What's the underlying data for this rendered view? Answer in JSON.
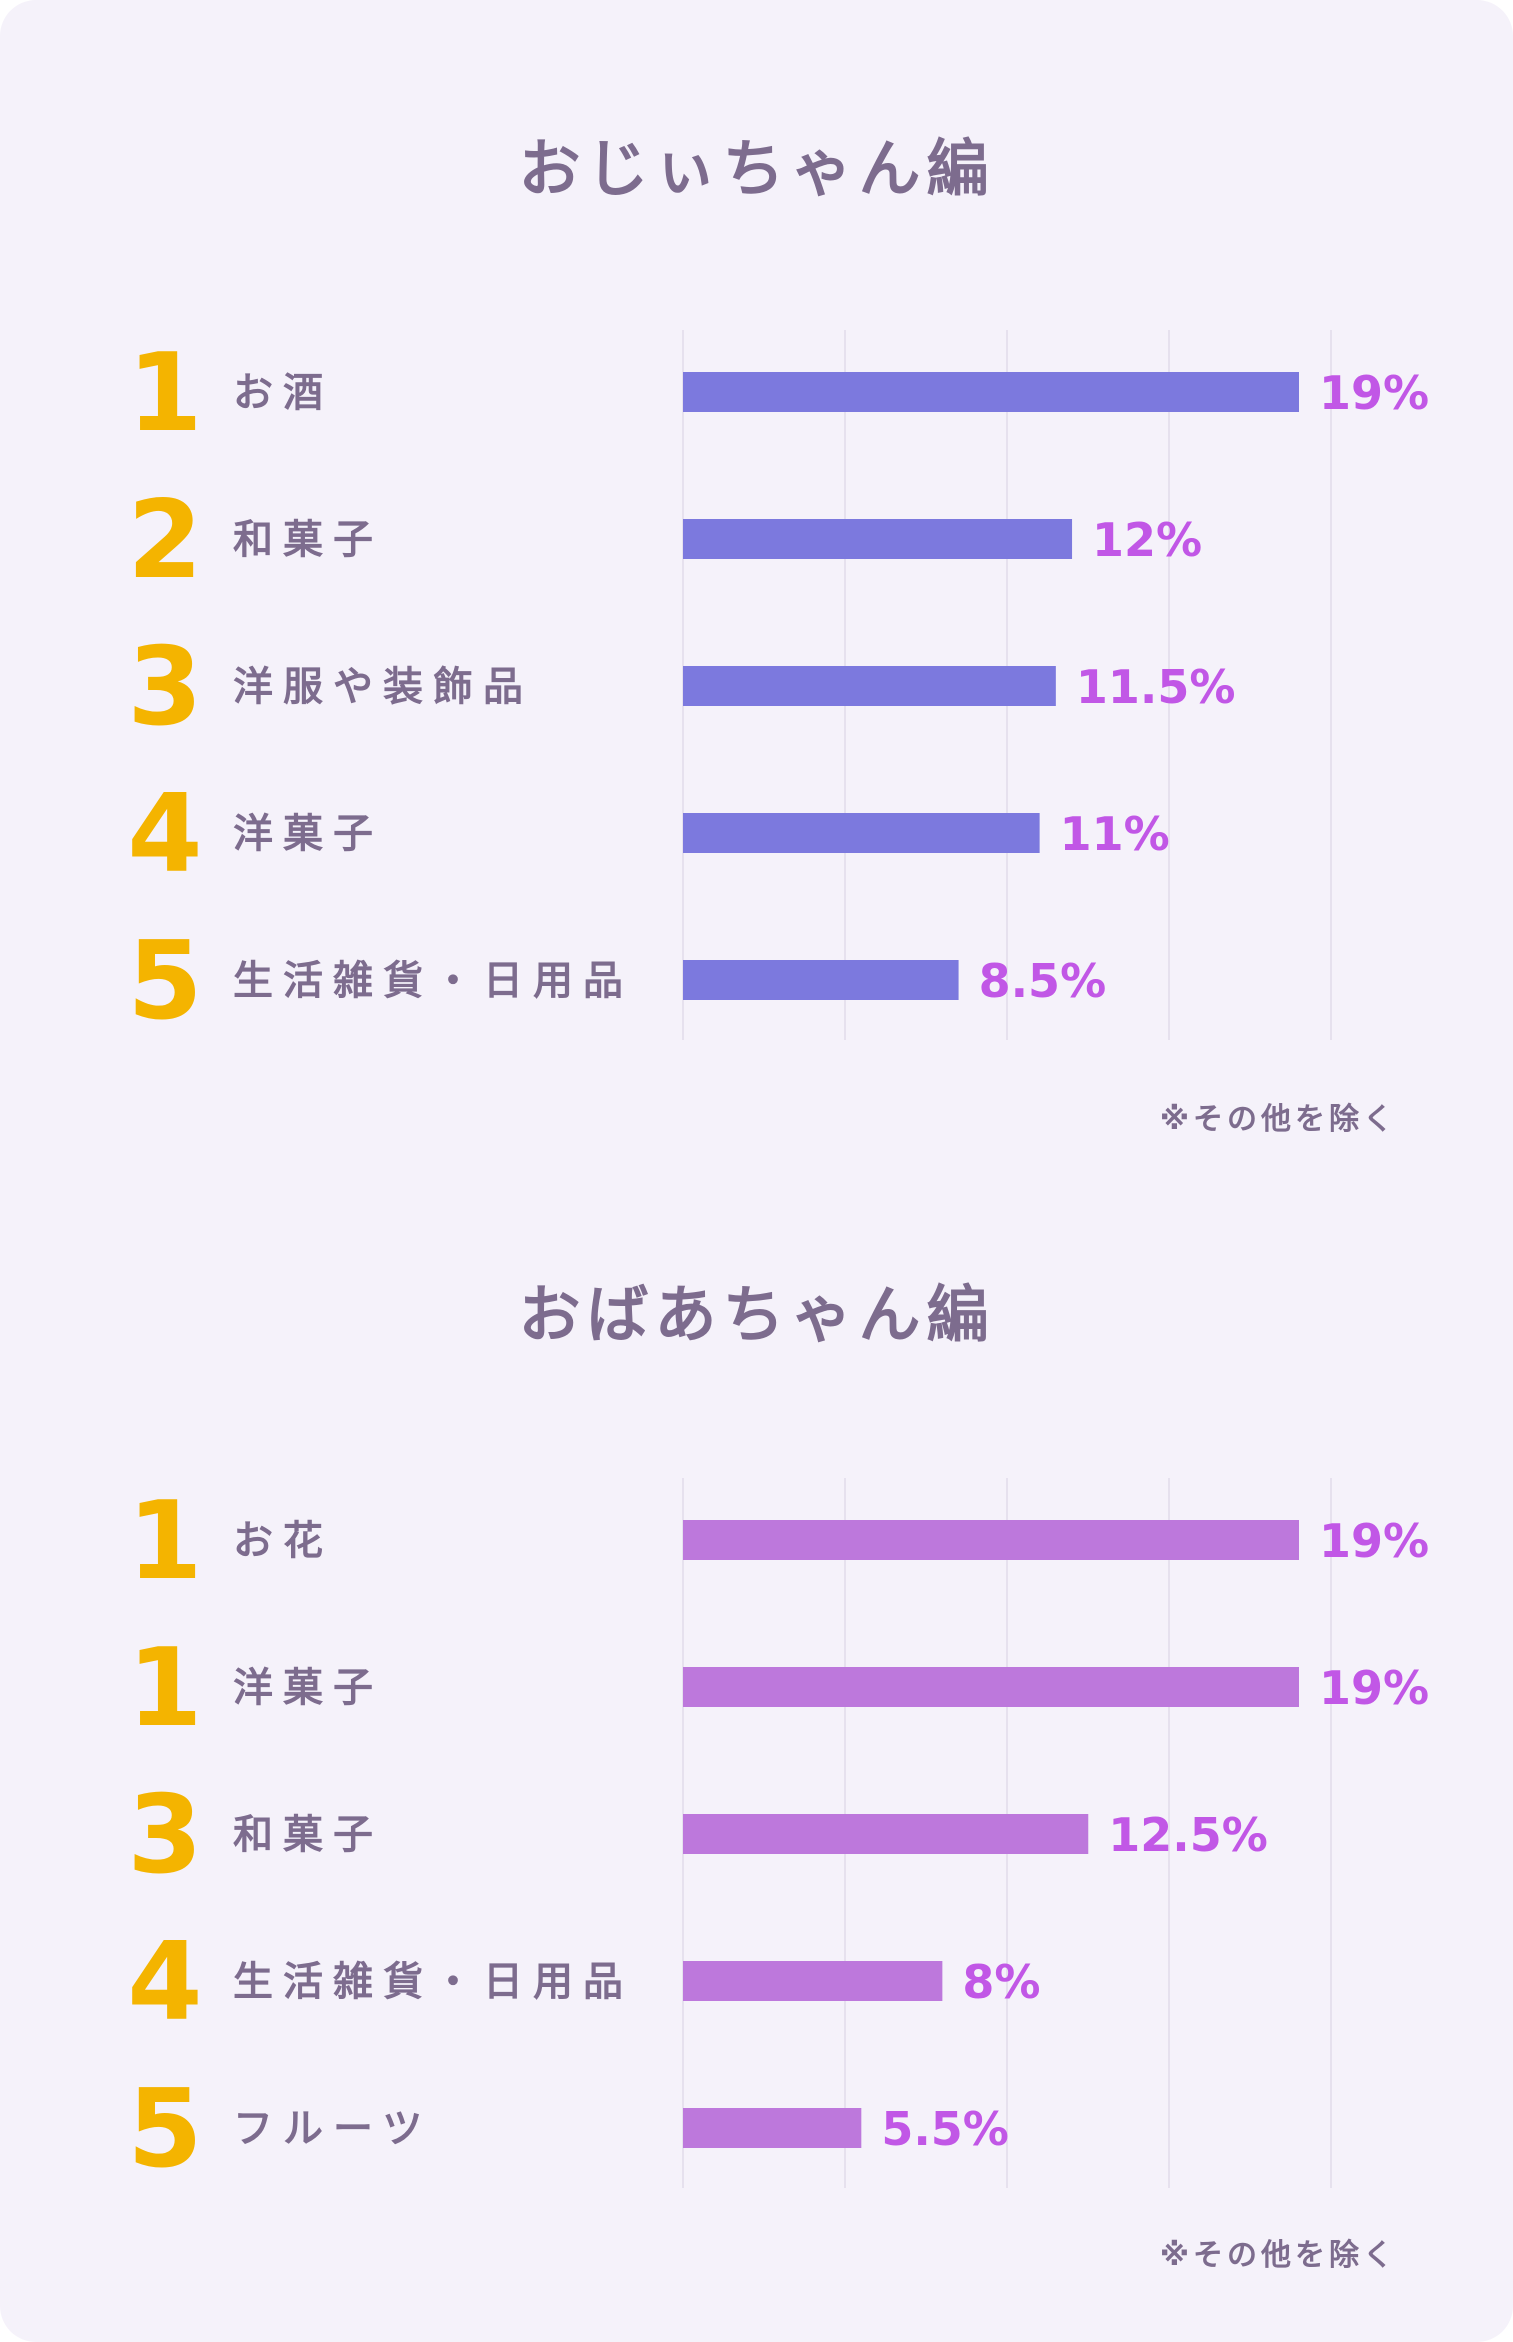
{
  "chart_data": [
    {
      "type": "bar",
      "title": "おじぃちゃん編",
      "ranks": [
        "1",
        "2",
        "3",
        "4",
        "5"
      ],
      "categories": [
        "お酒",
        "和菓子",
        "洋服や装飾品",
        "洋菓子",
        "生活雑貨・日用品"
      ],
      "values": [
        19,
        12,
        11.5,
        11,
        8.5
      ],
      "value_labels": [
        "19%",
        "12%",
        "11.5%",
        "11%",
        "8.5%"
      ],
      "xlim": [
        0,
        20
      ],
      "grid": true,
      "bar_color": "#7c79de",
      "note": "※その他を除く"
    },
    {
      "type": "bar",
      "title": "おばあちゃん編",
      "ranks": [
        "1",
        "1",
        "3",
        "4",
        "5"
      ],
      "categories": [
        "お花",
        "洋菓子",
        "和菓子",
        "生活雑貨・日用品",
        "フルーツ"
      ],
      "values": [
        19,
        19,
        12.5,
        8,
        5.5
      ],
      "value_labels": [
        "19%",
        "19%",
        "12.5%",
        "8%",
        "5.5%"
      ],
      "xlim": [
        0,
        20
      ],
      "grid": true,
      "bar_color": "#bd78dc",
      "note": "※その他を除く"
    }
  ]
}
